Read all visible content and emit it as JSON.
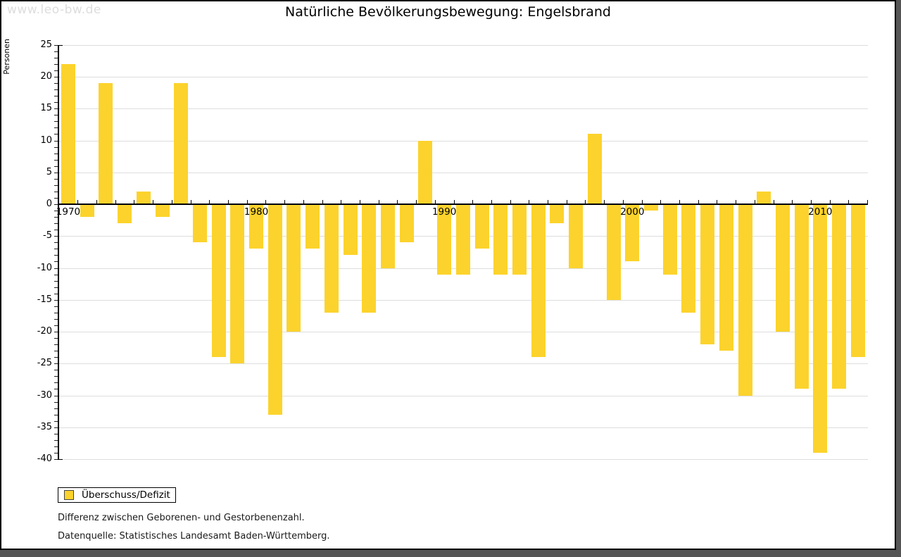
{
  "watermark": "www.leo-bw.de",
  "title": "Natürliche Bevölkerungsbewegung: Engelsbrand",
  "y_axis": {
    "label": "Personen",
    "tick_labels": [
      "25",
      "20",
      "15",
      "10",
      "5",
      "0",
      "-5",
      "-10",
      "-15",
      "-20",
      "-25",
      "-30",
      "-35",
      "-40"
    ],
    "tick_values": [
      25,
      20,
      15,
      10,
      5,
      0,
      -5,
      -10,
      -15,
      -20,
      -25,
      -30,
      -35,
      -40
    ]
  },
  "x_axis": {
    "decade_labels": [
      "1970",
      "1980",
      "1990",
      "2000",
      "2010"
    ]
  },
  "legend": {
    "label": "Überschuss/Defizit"
  },
  "notes": [
    "Differenz zwischen Geborenen- und Gestorbenenzahl.",
    "Datenquelle: Statistisches Landesamt Baden-Württemberg."
  ],
  "colors": {
    "bar": "#FCD32C",
    "grid": "#DDDDDD",
    "axis": "#000000",
    "watermark": "#DDDDDD",
    "frame_shadow": "#555555"
  },
  "chart_data": {
    "type": "bar",
    "title": "Natürliche Bevölkerungsbewegung: Engelsbrand",
    "xlabel": "",
    "ylabel": "Personen",
    "ylim": [
      -40,
      25
    ],
    "grid": true,
    "legend_position": "bottom-left",
    "series_name": "Überschuss/Defizit",
    "bar_color": "#FCD32C",
    "x": [
      1970,
      1971,
      1972,
      1973,
      1974,
      1975,
      1976,
      1977,
      1978,
      1979,
      1980,
      1981,
      1982,
      1983,
      1984,
      1985,
      1986,
      1987,
      1988,
      1989,
      1990,
      1991,
      1992,
      1993,
      1994,
      1995,
      1996,
      1997,
      1998,
      1999,
      2000,
      2001,
      2002,
      2003,
      2004,
      2005,
      2006,
      2007,
      2008,
      2009,
      2010,
      2011,
      2012
    ],
    "values": [
      22,
      -2,
      19,
      -3,
      2,
      -2,
      19,
      -6,
      -24,
      -25,
      -7,
      -33,
      -20,
      -7,
      -17,
      -8,
      -17,
      -10,
      -6,
      10,
      -11,
      -11,
      -7,
      -11,
      -11,
      -24,
      -3,
      -10,
      11,
      -15,
      -9,
      -1,
      -11,
      -17,
      -22,
      -23,
      -30,
      2,
      -20,
      -29,
      -39,
      -29,
      -24
    ]
  }
}
